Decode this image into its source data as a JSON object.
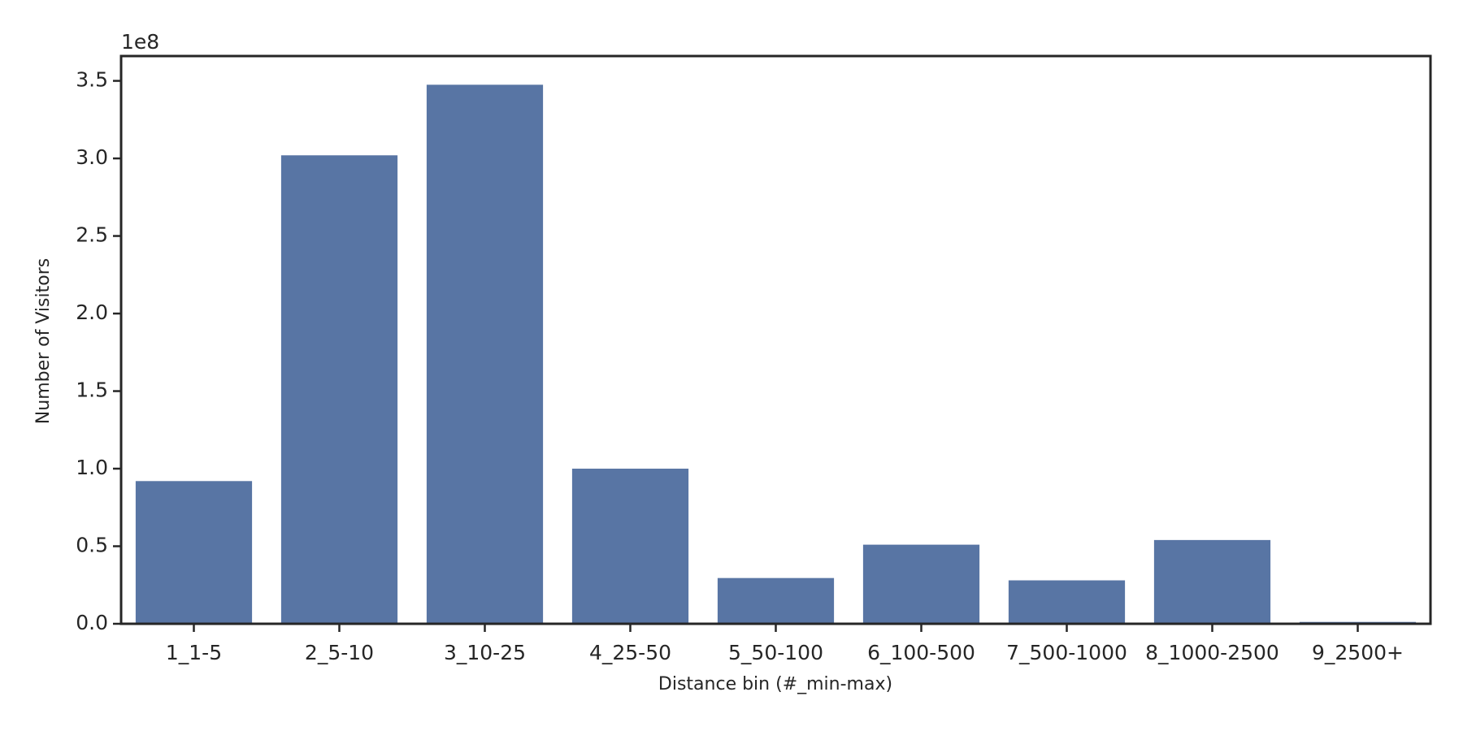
{
  "chart_data": {
    "type": "bar",
    "x_label": "Distance bin (#_min-max)",
    "y_label": "Number of Visitors",
    "y_offset_label": "1e8",
    "categories": [
      "1_1-5",
      "2_5-10",
      "3_10-25",
      "4_25-50",
      "5_50-100",
      "6_100-500",
      "7_500-1000",
      "8_1000-2500",
      "9_2500+"
    ],
    "values": [
      0.92,
      3.02,
      3.475,
      1.0,
      0.295,
      0.51,
      0.28,
      0.54,
      0.012
    ],
    "color": "#5875a4",
    "ylim": [
      0,
      3.66
    ],
    "yticks": [
      {
        "value": 0,
        "label": "0.0"
      },
      0.5,
      {
        "value": 1,
        "label": "1.0"
      },
      1.5,
      {
        "value": 2,
        "label": "2.0"
      },
      2.5,
      {
        "value": 3,
        "label": "3.0"
      },
      3.5
    ],
    "grid": false
  }
}
